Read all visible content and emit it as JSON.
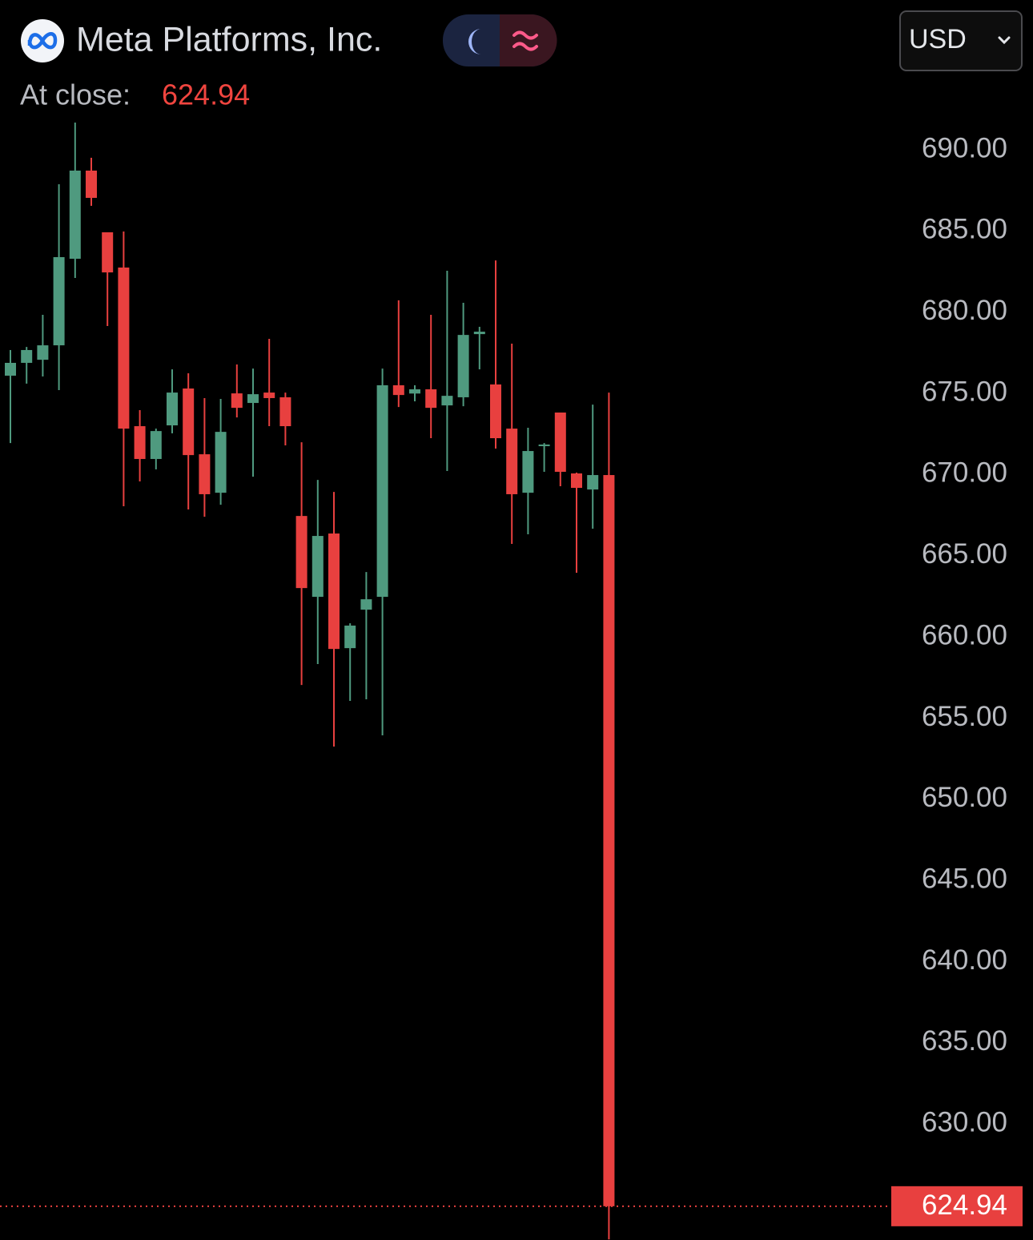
{
  "chart_data": {
    "type": "candlestick",
    "title": "Meta Platforms, Inc.",
    "close_label": "At close:",
    "last_price": 624.94,
    "currency": "USD",
    "up_color": "#4f9a7f",
    "down_color": "#e8403f",
    "categories": [
      null,
      null,
      null,
      null,
      null,
      null,
      null,
      null,
      null,
      null,
      null,
      null,
      null,
      null,
      null,
      null,
      null,
      null,
      null,
      null,
      null,
      null,
      null,
      null,
      null,
      null,
      null,
      null,
      null,
      null,
      null,
      null,
      null,
      null,
      null,
      null,
      null,
      null
    ],
    "open": [
      676.09,
      676.88,
      677.07,
      677.96,
      683.29,
      688.72,
      684.92,
      682.75,
      672.98,
      670.96,
      673.03,
      675.3,
      671.25,
      668.88,
      675.0,
      674.41,
      675.05,
      674.76,
      667.45,
      662.47,
      666.37,
      659.31,
      661.68,
      662.47,
      675.5,
      674.99,
      675.25,
      674.26,
      674.76,
      678.65,
      675.55,
      672.83,
      668.88,
      671.75,
      673.82,
      670.07,
      669.08,
      669.97
    ],
    "high": [
      677.67,
      677.86,
      679.84,
      687.88,
      691.68,
      689.51,
      684.92,
      684.97,
      673.97,
      672.83,
      676.48,
      676.24,
      674.71,
      674.66,
      676.78,
      676.53,
      678.36,
      675.05,
      671.99,
      669.67,
      668.93,
      660.84,
      664.0,
      676.53,
      680.73,
      675.5,
      679.84,
      682.55,
      680.58,
      679.1,
      683.19,
      678.06,
      672.88,
      671.94,
      673.82,
      670.12,
      674.31,
      675.05
    ],
    "low": [
      671.94,
      675.6,
      676.04,
      675.2,
      682.11,
      686.55,
      679.15,
      668.05,
      669.58,
      670.32,
      672.54,
      667.85,
      667.4,
      668.14,
      673.52,
      669.87,
      672.98,
      671.8,
      657.04,
      658.33,
      653.25,
      656.06,
      656.16,
      653.94,
      674.16,
      674.51,
      672.24,
      670.22,
      674.21,
      676.48,
      671.6,
      665.73,
      666.32,
      670.17,
      669.28,
      663.95,
      666.67,
      622.9
    ],
    "close": [
      676.88,
      677.67,
      677.96,
      683.39,
      688.72,
      687.04,
      682.45,
      672.83,
      670.96,
      672.68,
      675.05,
      671.2,
      668.79,
      672.63,
      674.11,
      674.95,
      674.71,
      672.98,
      663.01,
      666.22,
      659.26,
      660.7,
      662.32,
      675.5,
      674.9,
      675.25,
      674.11,
      674.85,
      678.6,
      678.8,
      672.24,
      668.79,
      671.45,
      671.85,
      670.17,
      669.18,
      669.97,
      624.94
    ],
    "ylim": [
      622.86,
      692.32
    ],
    "yticks": [
      {
        "value": 690,
        "label": "690.00"
      },
      {
        "value": 685,
        "label": "685.00"
      },
      {
        "value": 680,
        "label": "680.00"
      },
      {
        "value": 675,
        "label": "675.00"
      },
      {
        "value": 670,
        "label": "670.00"
      },
      {
        "value": 665,
        "label": "665.00"
      },
      {
        "value": 660,
        "label": "660.00"
      },
      {
        "value": 655,
        "label": "655.00"
      },
      {
        "value": 650,
        "label": "650.00"
      },
      {
        "value": 645,
        "label": "645.00"
      },
      {
        "value": 640,
        "label": "640.00"
      },
      {
        "value": 635,
        "label": "635.00"
      },
      {
        "value": 630,
        "label": "630.00"
      }
    ]
  }
}
